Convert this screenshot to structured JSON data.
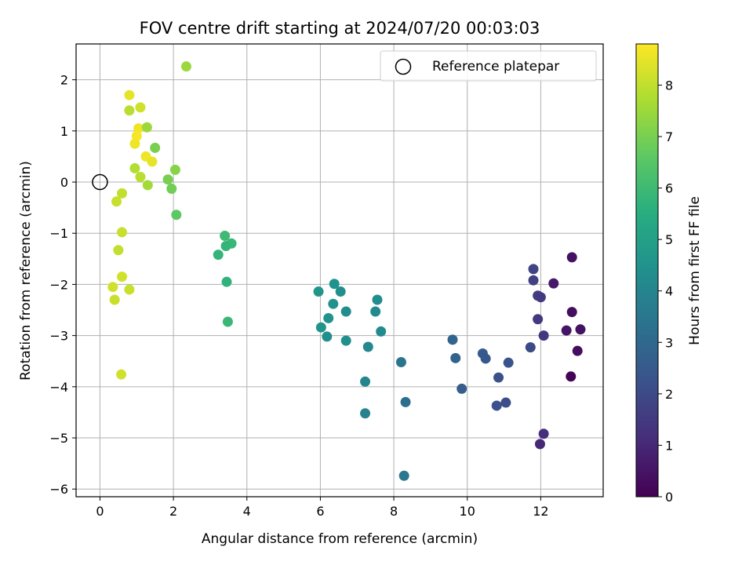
{
  "chart_data": {
    "type": "scatter",
    "title": "FOV centre drift starting at 2024/07/20 00:03:03",
    "xlabel": "Angular distance from reference (arcmin)",
    "ylabel": "Rotation from reference (arcmin)",
    "colorbar_label": "Hours from first FF file",
    "colormap": "viridis",
    "xlim": [
      -0.65,
      13.7
    ],
    "ylim": [
      -6.15,
      2.7
    ],
    "clim": [
      0,
      8.8
    ],
    "x_ticks": [
      0,
      2,
      4,
      6,
      8,
      10,
      12
    ],
    "y_ticks": [
      -6,
      -5,
      -4,
      -3,
      -2,
      -1,
      0,
      1,
      2
    ],
    "colorbar_ticks": [
      0,
      1,
      2,
      3,
      4,
      5,
      6,
      7,
      8
    ],
    "grid": true,
    "legend": {
      "position": "top-right",
      "entries": [
        "Reference platepar"
      ]
    },
    "reference_point": {
      "x": 0,
      "y": 0,
      "marker": "hollow-circle",
      "color": "#000000"
    },
    "points": [
      {
        "x": 0.8,
        "y": 1.7,
        "c": 8.5
      },
      {
        "x": 1.1,
        "y": 1.46,
        "c": 8.2
      },
      {
        "x": 0.8,
        "y": 1.4,
        "c": 7.9
      },
      {
        "x": 1.05,
        "y": 1.05,
        "c": 8.6
      },
      {
        "x": 1.0,
        "y": 0.9,
        "c": 8.7
      },
      {
        "x": 0.95,
        "y": 0.75,
        "c": 8.6
      },
      {
        "x": 1.25,
        "y": 0.5,
        "c": 8.6
      },
      {
        "x": 1.42,
        "y": 0.4,
        "c": 8.5
      },
      {
        "x": 1.28,
        "y": 1.07,
        "c": 7.5
      },
      {
        "x": 1.5,
        "y": 0.67,
        "c": 7.0
      },
      {
        "x": 0.95,
        "y": 0.27,
        "c": 7.8
      },
      {
        "x": 1.1,
        "y": 0.1,
        "c": 7.9
      },
      {
        "x": 1.3,
        "y": -0.06,
        "c": 7.6
      },
      {
        "x": 2.35,
        "y": 2.26,
        "c": 7.5
      },
      {
        "x": 2.05,
        "y": 0.24,
        "c": 7.2
      },
      {
        "x": 1.85,
        "y": 0.05,
        "c": 7.0
      },
      {
        "x": 1.95,
        "y": -0.13,
        "c": 6.9
      },
      {
        "x": 2.08,
        "y": -0.64,
        "c": 6.6
      },
      {
        "x": 0.6,
        "y": -0.22,
        "c": 8.0
      },
      {
        "x": 0.45,
        "y": -0.38,
        "c": 8.1
      },
      {
        "x": 0.6,
        "y": -0.98,
        "c": 8.1
      },
      {
        "x": 0.5,
        "y": -1.33,
        "c": 8.0
      },
      {
        "x": 0.6,
        "y": -1.85,
        "c": 8.2
      },
      {
        "x": 0.35,
        "y": -2.05,
        "c": 8.2
      },
      {
        "x": 0.8,
        "y": -2.1,
        "c": 8.1
      },
      {
        "x": 0.4,
        "y": -2.3,
        "c": 8.1
      },
      {
        "x": 0.58,
        "y": -3.76,
        "c": 8.2
      },
      {
        "x": 3.4,
        "y": -1.05,
        "c": 6.0
      },
      {
        "x": 3.58,
        "y": -1.2,
        "c": 5.9
      },
      {
        "x": 3.43,
        "y": -1.25,
        "c": 5.8
      },
      {
        "x": 3.22,
        "y": -1.42,
        "c": 5.8
      },
      {
        "x": 3.45,
        "y": -1.95,
        "c": 5.7
      },
      {
        "x": 3.48,
        "y": -2.73,
        "c": 5.9
      },
      {
        "x": 5.95,
        "y": -2.14,
        "c": 4.6
      },
      {
        "x": 6.38,
        "y": -1.99,
        "c": 4.5
      },
      {
        "x": 6.55,
        "y": -2.14,
        "c": 4.4
      },
      {
        "x": 6.35,
        "y": -2.38,
        "c": 4.5
      },
      {
        "x": 7.55,
        "y": -2.3,
        "c": 4.3
      },
      {
        "x": 6.7,
        "y": -2.53,
        "c": 4.3
      },
      {
        "x": 7.5,
        "y": -2.53,
        "c": 4.2
      },
      {
        "x": 6.22,
        "y": -2.66,
        "c": 4.5
      },
      {
        "x": 6.02,
        "y": -2.84,
        "c": 4.6
      },
      {
        "x": 7.65,
        "y": -2.92,
        "c": 4.2
      },
      {
        "x": 6.18,
        "y": -3.02,
        "c": 4.4
      },
      {
        "x": 6.7,
        "y": -3.1,
        "c": 4.4
      },
      {
        "x": 7.3,
        "y": -3.22,
        "c": 4.1
      },
      {
        "x": 7.22,
        "y": -3.9,
        "c": 4.0
      },
      {
        "x": 7.22,
        "y": -4.52,
        "c": 3.9
      },
      {
        "x": 8.2,
        "y": -3.52,
        "c": 3.4
      },
      {
        "x": 8.32,
        "y": -4.3,
        "c": 3.2
      },
      {
        "x": 8.28,
        "y": -5.74,
        "c": 3.5
      },
      {
        "x": 9.6,
        "y": -3.08,
        "c": 2.9
      },
      {
        "x": 9.68,
        "y": -3.44,
        "c": 2.8
      },
      {
        "x": 9.85,
        "y": -4.04,
        "c": 2.6
      },
      {
        "x": 10.42,
        "y": -3.35,
        "c": 2.5
      },
      {
        "x": 10.5,
        "y": -3.45,
        "c": 2.4
      },
      {
        "x": 11.12,
        "y": -3.53,
        "c": 2.3
      },
      {
        "x": 10.85,
        "y": -3.82,
        "c": 2.2
      },
      {
        "x": 10.8,
        "y": -4.37,
        "c": 2.2
      },
      {
        "x": 11.05,
        "y": -4.31,
        "c": 2.1
      },
      {
        "x": 11.72,
        "y": -3.23,
        "c": 2.0
      },
      {
        "x": 11.8,
        "y": -1.7,
        "c": 1.8
      },
      {
        "x": 11.8,
        "y": -1.92,
        "c": 1.7
      },
      {
        "x": 11.92,
        "y": -2.22,
        "c": 1.6
      },
      {
        "x": 12.0,
        "y": -2.25,
        "c": 1.5
      },
      {
        "x": 11.92,
        "y": -2.68,
        "c": 1.5
      },
      {
        "x": 12.08,
        "y": -3.0,
        "c": 1.4
      },
      {
        "x": 12.08,
        "y": -4.92,
        "c": 1.2
      },
      {
        "x": 11.98,
        "y": -5.12,
        "c": 1.0
      },
      {
        "x": 12.35,
        "y": -1.98,
        "c": 0.6
      },
      {
        "x": 12.85,
        "y": -1.47,
        "c": 0.4
      },
      {
        "x": 12.85,
        "y": -2.54,
        "c": 0.3
      },
      {
        "x": 12.7,
        "y": -2.9,
        "c": 0.5
      },
      {
        "x": 13.08,
        "y": -2.88,
        "c": 0.4
      },
      {
        "x": 13.0,
        "y": -3.3,
        "c": 0.3
      },
      {
        "x": 12.82,
        "y": -3.8,
        "c": 0.1
      }
    ]
  }
}
